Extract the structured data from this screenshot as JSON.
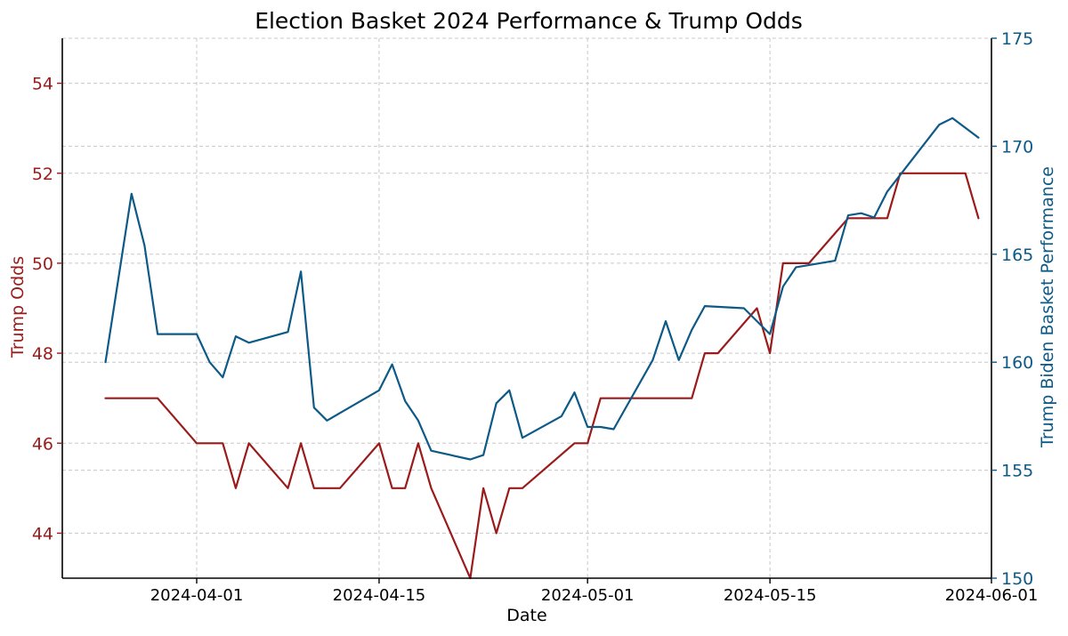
{
  "chart_data": {
    "type": "line",
    "title": "Election Basket 2024 Performance & Trump Odds",
    "xlabel": "Date",
    "x_ticks": [
      "2024-04-01",
      "2024-04-15",
      "2024-05-01",
      "2024-05-15",
      "2024-06-01"
    ],
    "left_axis": {
      "label": "Trump Odds",
      "ylim": [
        43,
        55
      ],
      "ticks": [
        44,
        46,
        48,
        50,
        52,
        54
      ],
      "color": "#9b1b1b"
    },
    "right_axis": {
      "label": "Trump Biden Basket Performance",
      "ylim": [
        150,
        175
      ],
      "ticks": [
        150,
        155,
        160,
        165,
        170,
        175
      ],
      "color": "#0d5a87"
    },
    "grid": true,
    "series": [
      {
        "axis": "left",
        "color": "#9b1b1b",
        "points": [
          [
            "2024-03-25",
            47
          ],
          [
            "2024-03-29",
            47
          ],
          [
            "2024-04-01",
            46
          ],
          [
            "2024-04-03",
            46
          ],
          [
            "2024-04-04",
            45
          ],
          [
            "2024-04-05",
            46
          ],
          [
            "2024-04-08",
            45
          ],
          [
            "2024-04-09",
            46
          ],
          [
            "2024-04-10",
            45
          ],
          [
            "2024-04-12",
            45
          ],
          [
            "2024-04-15",
            46
          ],
          [
            "2024-04-16",
            45
          ],
          [
            "2024-04-17",
            45
          ],
          [
            "2024-04-18",
            46
          ],
          [
            "2024-04-19",
            45
          ],
          [
            "2024-04-22",
            43
          ],
          [
            "2024-04-23",
            45
          ],
          [
            "2024-04-24",
            44
          ],
          [
            "2024-04-25",
            45
          ],
          [
            "2024-04-26",
            45
          ],
          [
            "2024-04-30",
            46
          ],
          [
            "2024-05-01",
            46
          ],
          [
            "2024-05-02",
            47
          ],
          [
            "2024-05-09",
            47
          ],
          [
            "2024-05-10",
            48
          ],
          [
            "2024-05-11",
            48
          ],
          [
            "2024-05-14",
            49
          ],
          [
            "2024-05-15",
            48
          ],
          [
            "2024-05-16",
            50
          ],
          [
            "2024-05-18",
            50
          ],
          [
            "2024-05-21",
            51
          ],
          [
            "2024-05-24",
            51
          ],
          [
            "2024-05-25",
            52
          ],
          [
            "2024-05-30",
            52
          ],
          [
            "2024-05-31",
            51
          ]
        ]
      },
      {
        "axis": "right",
        "color": "#0d5a87",
        "points": [
          [
            "2024-03-25",
            160
          ],
          [
            "2024-03-27",
            167.8
          ],
          [
            "2024-03-28",
            165.4
          ],
          [
            "2024-03-29",
            161.3
          ],
          [
            "2024-04-01",
            161.3
          ],
          [
            "2024-04-02",
            160
          ],
          [
            "2024-04-03",
            159.3
          ],
          [
            "2024-04-04",
            161.2
          ],
          [
            "2024-04-05",
            160.9
          ],
          [
            "2024-04-08",
            161.4
          ],
          [
            "2024-04-09",
            164.2
          ],
          [
            "2024-04-10",
            157.9
          ],
          [
            "2024-04-11",
            157.3
          ],
          [
            "2024-04-15",
            158.7
          ],
          [
            "2024-04-16",
            159.9
          ],
          [
            "2024-04-17",
            158.2
          ],
          [
            "2024-04-18",
            157.3
          ],
          [
            "2024-04-19",
            155.9
          ],
          [
            "2024-04-22",
            155.5
          ],
          [
            "2024-04-23",
            155.7
          ],
          [
            "2024-04-24",
            158.1
          ],
          [
            "2024-04-25",
            158.7
          ],
          [
            "2024-04-26",
            156.5
          ],
          [
            "2024-04-29",
            157.5
          ],
          [
            "2024-04-30",
            158.6
          ],
          [
            "2024-05-01",
            157
          ],
          [
            "2024-05-02",
            157
          ],
          [
            "2024-05-03",
            156.9
          ],
          [
            "2024-05-06",
            160.1
          ],
          [
            "2024-05-07",
            161.9
          ],
          [
            "2024-05-08",
            160.1
          ],
          [
            "2024-05-09",
            161.5
          ],
          [
            "2024-05-10",
            162.6
          ],
          [
            "2024-05-13",
            162.5
          ],
          [
            "2024-05-15",
            161.3
          ],
          [
            "2024-05-16",
            163.5
          ],
          [
            "2024-05-17",
            164.4
          ],
          [
            "2024-05-20",
            164.7
          ],
          [
            "2024-05-21",
            166.8
          ],
          [
            "2024-05-22",
            166.9
          ],
          [
            "2024-05-23",
            166.7
          ],
          [
            "2024-05-24",
            167.9
          ],
          [
            "2024-05-28",
            171
          ],
          [
            "2024-05-29",
            171.3
          ],
          [
            "2024-05-31",
            170.4
          ]
        ]
      }
    ]
  }
}
